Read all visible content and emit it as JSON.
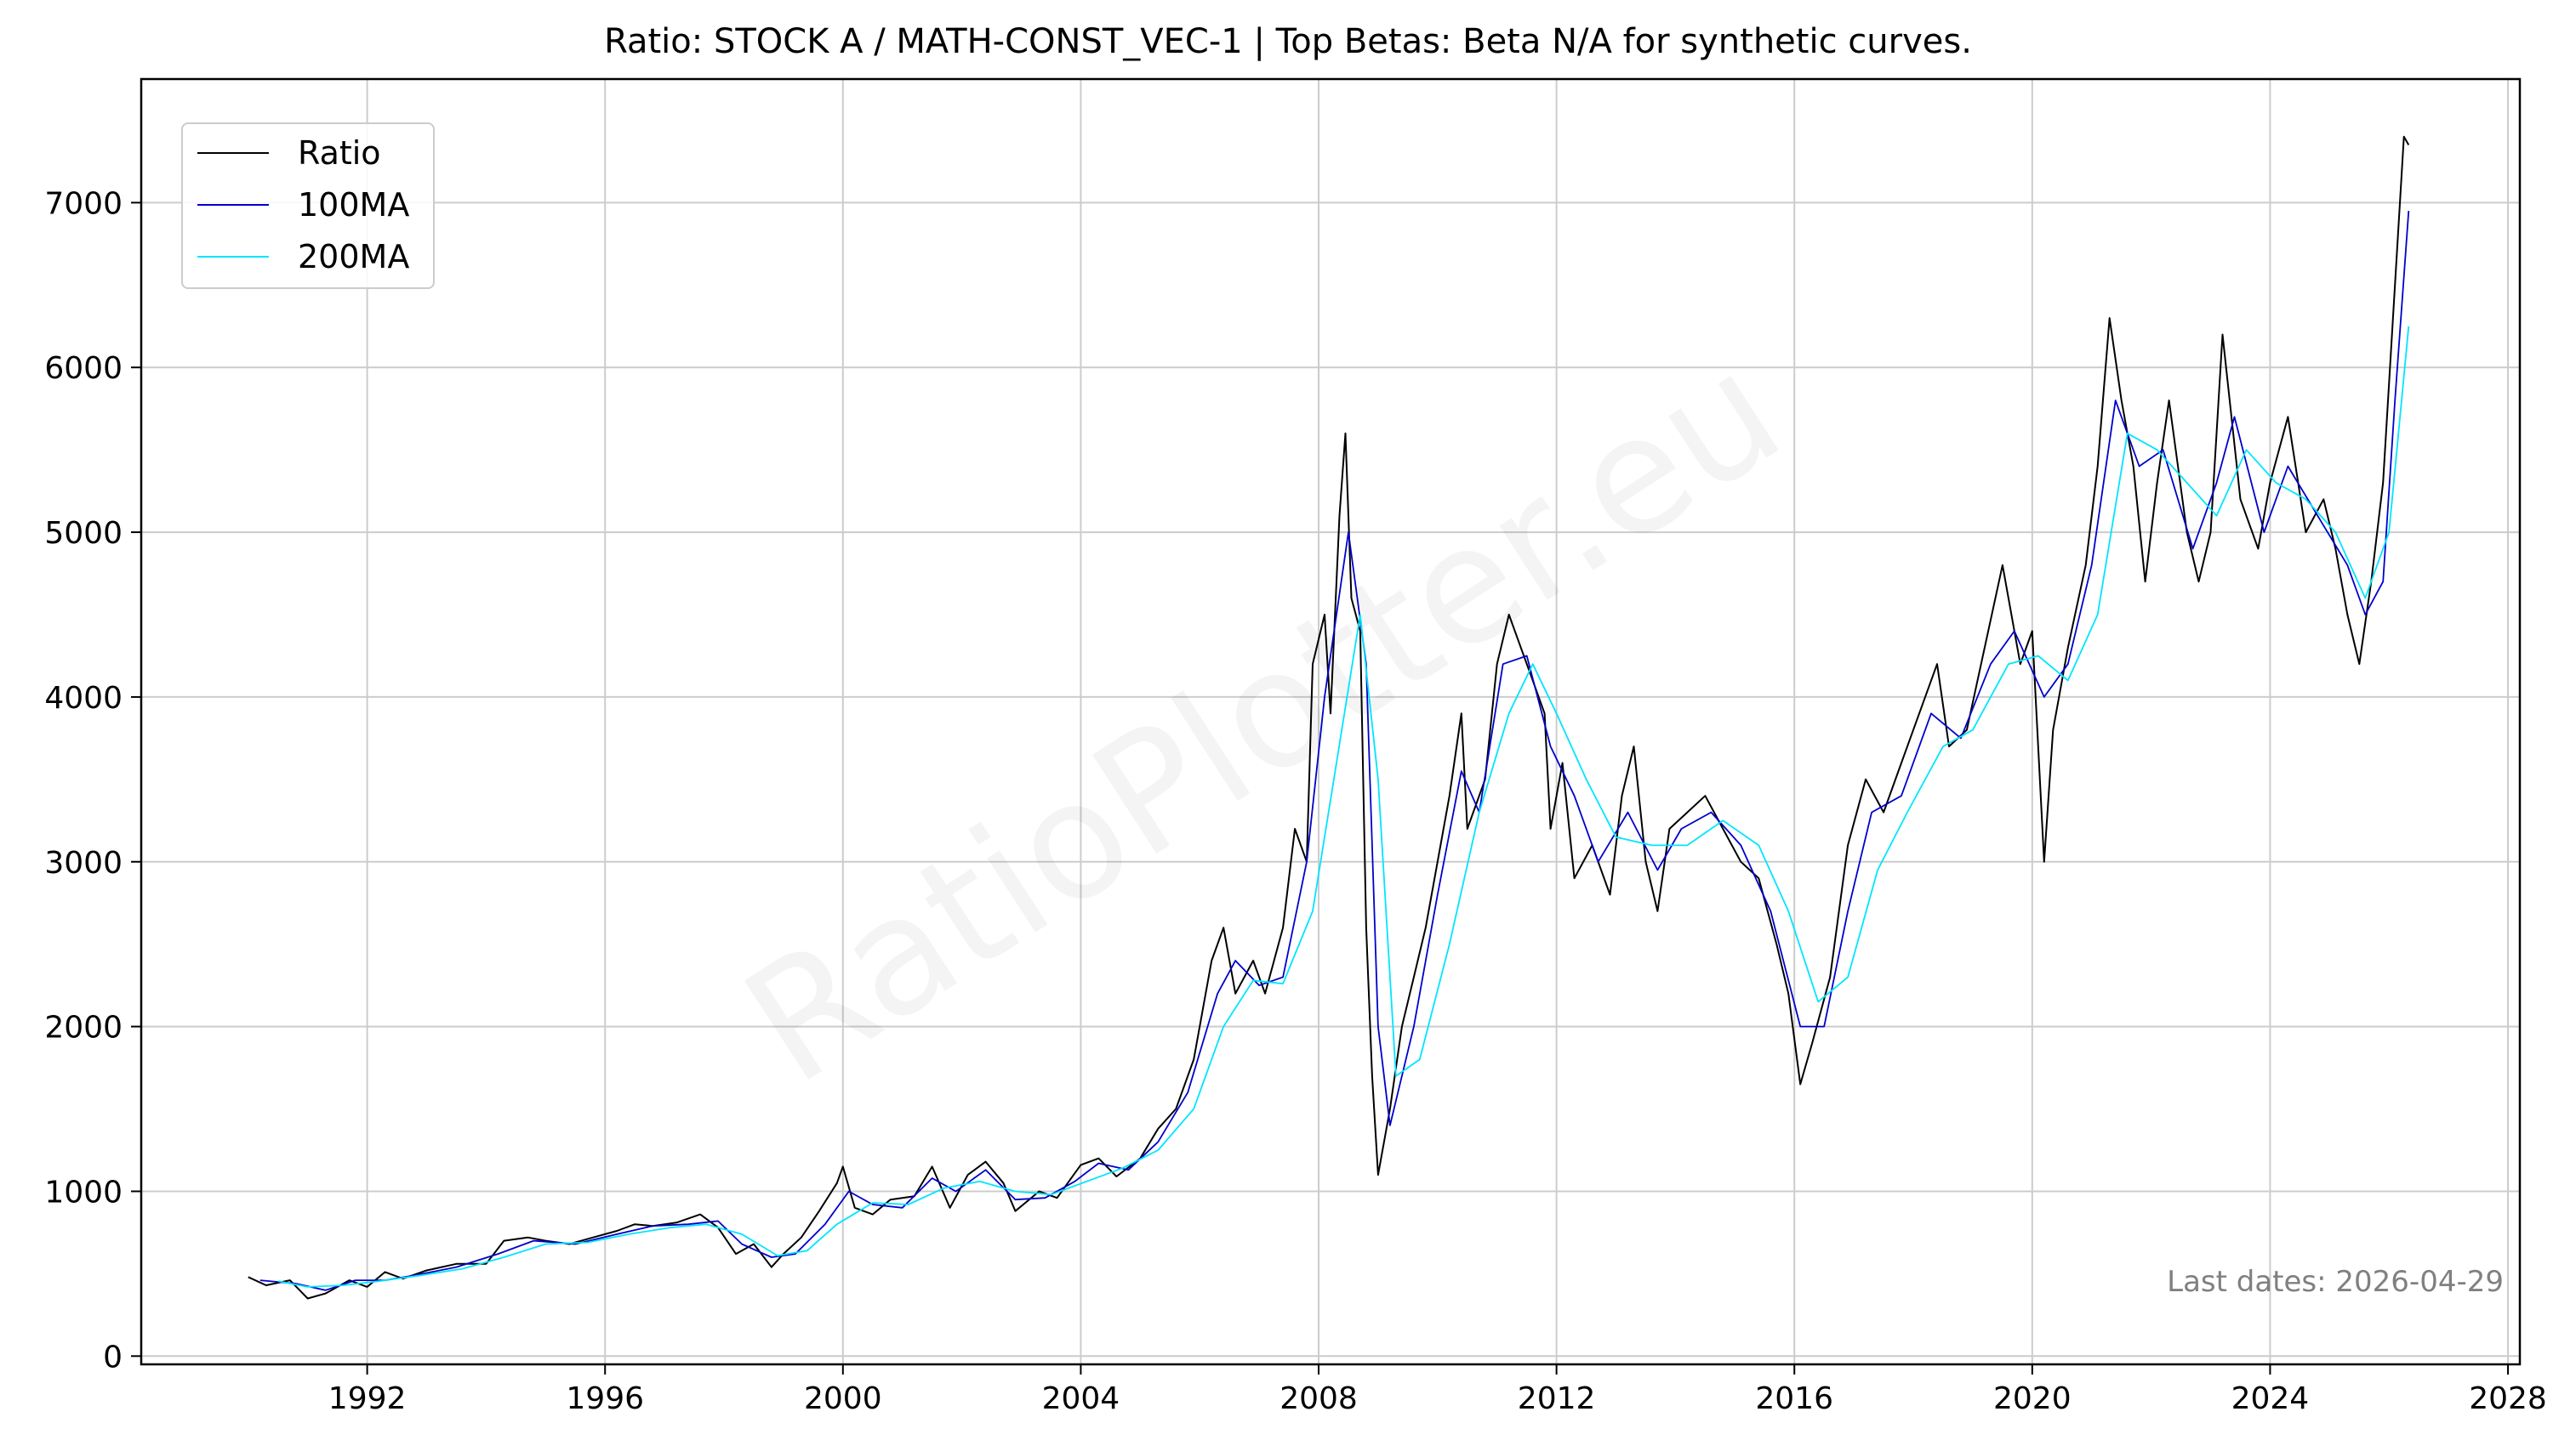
{
  "chart_data": {
    "type": "line",
    "title": "Ratio: STOCK A / MATH-CONST_VEC-1 | Top Betas: Beta N/A for synthetic curves.",
    "xlabel": "",
    "ylabel": "",
    "xlim": [
      1988.2,
      2028.2
    ],
    "ylim": [
      -50,
      7750
    ],
    "x_ticks": [
      1992,
      1996,
      2000,
      2004,
      2008,
      2012,
      2016,
      2020,
      2024,
      2028
    ],
    "y_ticks": [
      0,
      1000,
      2000,
      3000,
      4000,
      5000,
      6000,
      7000
    ],
    "grid": true,
    "legend_position": "top-left",
    "annotation": "Last dates: 2026-04-29",
    "watermark": "RatioPlotter.eu",
    "series": [
      {
        "name": "Ratio",
        "color": "#000000",
        "points": [
          [
            1990.0,
            480
          ],
          [
            1990.3,
            430
          ],
          [
            1990.7,
            460
          ],
          [
            1991.0,
            350
          ],
          [
            1991.3,
            380
          ],
          [
            1991.7,
            460
          ],
          [
            1992.0,
            420
          ],
          [
            1992.3,
            510
          ],
          [
            1992.6,
            470
          ],
          [
            1993.0,
            520
          ],
          [
            1993.5,
            560
          ],
          [
            1994.0,
            560
          ],
          [
            1994.3,
            700
          ],
          [
            1994.7,
            720
          ],
          [
            1995.0,
            700
          ],
          [
            1995.4,
            680
          ],
          [
            1995.8,
            720
          ],
          [
            1996.2,
            760
          ],
          [
            1996.5,
            800
          ],
          [
            1996.8,
            790
          ],
          [
            1997.2,
            810
          ],
          [
            1997.6,
            860
          ],
          [
            1997.9,
            780
          ],
          [
            1998.2,
            620
          ],
          [
            1998.5,
            680
          ],
          [
            1998.8,
            540
          ],
          [
            1999.0,
            620
          ],
          [
            1999.3,
            720
          ],
          [
            1999.6,
            880
          ],
          [
            1999.9,
            1050
          ],
          [
            2000.0,
            1150
          ],
          [
            2000.2,
            900
          ],
          [
            2000.5,
            860
          ],
          [
            2000.8,
            950
          ],
          [
            2001.2,
            970
          ],
          [
            2001.5,
            1150
          ],
          [
            2001.8,
            900
          ],
          [
            2002.1,
            1100
          ],
          [
            2002.4,
            1180
          ],
          [
            2002.7,
            1050
          ],
          [
            2002.9,
            880
          ],
          [
            2003.3,
            1000
          ],
          [
            2003.6,
            960
          ],
          [
            2004.0,
            1160
          ],
          [
            2004.3,
            1200
          ],
          [
            2004.6,
            1090
          ],
          [
            2005.0,
            1200
          ],
          [
            2005.3,
            1380
          ],
          [
            2005.6,
            1500
          ],
          [
            2005.9,
            1800
          ],
          [
            2006.2,
            2400
          ],
          [
            2006.4,
            2600
          ],
          [
            2006.6,
            2200
          ],
          [
            2006.9,
            2400
          ],
          [
            2007.1,
            2200
          ],
          [
            2007.4,
            2600
          ],
          [
            2007.6,
            3200
          ],
          [
            2007.8,
            3000
          ],
          [
            2007.9,
            4200
          ],
          [
            2008.1,
            4500
          ],
          [
            2008.2,
            3900
          ],
          [
            2008.35,
            5100
          ],
          [
            2008.45,
            5600
          ],
          [
            2008.55,
            4600
          ],
          [
            2008.7,
            4400
          ],
          [
            2008.8,
            2600
          ],
          [
            2008.9,
            1700
          ],
          [
            2009.0,
            1100
          ],
          [
            2009.2,
            1500
          ],
          [
            2009.4,
            2000
          ],
          [
            2009.6,
            2300
          ],
          [
            2009.8,
            2600
          ],
          [
            2010.0,
            3000
          ],
          [
            2010.2,
            3400
          ],
          [
            2010.4,
            3900
          ],
          [
            2010.5,
            3200
          ],
          [
            2010.8,
            3500
          ],
          [
            2011.0,
            4200
          ],
          [
            2011.2,
            4500
          ],
          [
            2011.4,
            4300
          ],
          [
            2011.6,
            4100
          ],
          [
            2011.8,
            3900
          ],
          [
            2011.9,
            3200
          ],
          [
            2012.1,
            3600
          ],
          [
            2012.3,
            2900
          ],
          [
            2012.6,
            3100
          ],
          [
            2012.9,
            2800
          ],
          [
            2013.1,
            3400
          ],
          [
            2013.3,
            3700
          ],
          [
            2013.5,
            3000
          ],
          [
            2013.7,
            2700
          ],
          [
            2013.9,
            3200
          ],
          [
            2014.2,
            3300
          ],
          [
            2014.5,
            3400
          ],
          [
            2014.8,
            3200
          ],
          [
            2015.1,
            3000
          ],
          [
            2015.4,
            2900
          ],
          [
            2015.7,
            2500
          ],
          [
            2015.9,
            2200
          ],
          [
            2016.1,
            1650
          ],
          [
            2016.3,
            1900
          ],
          [
            2016.6,
            2300
          ],
          [
            2016.9,
            3100
          ],
          [
            2017.2,
            3500
          ],
          [
            2017.5,
            3300
          ],
          [
            2017.8,
            3600
          ],
          [
            2018.1,
            3900
          ],
          [
            2018.4,
            4200
          ],
          [
            2018.6,
            3700
          ],
          [
            2018.9,
            3800
          ],
          [
            2019.2,
            4300
          ],
          [
            2019.5,
            4800
          ],
          [
            2019.8,
            4200
          ],
          [
            2020.0,
            4400
          ],
          [
            2020.2,
            3000
          ],
          [
            2020.35,
            3800
          ],
          [
            2020.6,
            4300
          ],
          [
            2020.9,
            4800
          ],
          [
            2021.1,
            5400
          ],
          [
            2021.3,
            6300
          ],
          [
            2021.5,
            5800
          ],
          [
            2021.7,
            5400
          ],
          [
            2021.9,
            4700
          ],
          [
            2022.1,
            5300
          ],
          [
            2022.3,
            5800
          ],
          [
            2022.6,
            5000
          ],
          [
            2022.8,
            4700
          ],
          [
            2023.0,
            5000
          ],
          [
            2023.2,
            6200
          ],
          [
            2023.5,
            5200
          ],
          [
            2023.8,
            4900
          ],
          [
            2024.0,
            5300
          ],
          [
            2024.3,
            5700
          ],
          [
            2024.6,
            5000
          ],
          [
            2024.9,
            5200
          ],
          [
            2025.1,
            4900
          ],
          [
            2025.3,
            4500
          ],
          [
            2025.5,
            4200
          ],
          [
            2025.7,
            4700
          ],
          [
            2025.9,
            5300
          ],
          [
            2026.1,
            6500
          ],
          [
            2026.25,
            7400
          ],
          [
            2026.33,
            7350
          ]
        ]
      },
      {
        "name": "100MA",
        "color": "#0000cc",
        "points": [
          [
            1990.2,
            460
          ],
          [
            1990.8,
            440
          ],
          [
            1991.3,
            400
          ],
          [
            1991.8,
            460
          ],
          [
            1992.3,
            460
          ],
          [
            1992.8,
            490
          ],
          [
            1993.5,
            540
          ],
          [
            1994.2,
            620
          ],
          [
            1994.8,
            700
          ],
          [
            1995.5,
            680
          ],
          [
            1996.2,
            740
          ],
          [
            1996.8,
            790
          ],
          [
            1997.4,
            800
          ],
          [
            1997.9,
            820
          ],
          [
            1998.3,
            680
          ],
          [
            1998.8,
            600
          ],
          [
            1999.2,
            620
          ],
          [
            1999.7,
            800
          ],
          [
            2000.1,
            1000
          ],
          [
            2000.5,
            920
          ],
          [
            2001.0,
            900
          ],
          [
            2001.5,
            1080
          ],
          [
            2001.9,
            1000
          ],
          [
            2002.4,
            1130
          ],
          [
            2002.9,
            950
          ],
          [
            2003.4,
            960
          ],
          [
            2003.9,
            1060
          ],
          [
            2004.3,
            1170
          ],
          [
            2004.8,
            1130
          ],
          [
            2005.3,
            1300
          ],
          [
            2005.8,
            1600
          ],
          [
            2006.3,
            2200
          ],
          [
            2006.6,
            2400
          ],
          [
            2007.0,
            2250
          ],
          [
            2007.4,
            2300
          ],
          [
            2007.8,
            3000
          ],
          [
            2008.1,
            4000
          ],
          [
            2008.5,
            5000
          ],
          [
            2008.8,
            4200
          ],
          [
            2009.0,
            2000
          ],
          [
            2009.2,
            1400
          ],
          [
            2009.6,
            2000
          ],
          [
            2010.0,
            2800
          ],
          [
            2010.4,
            3550
          ],
          [
            2010.7,
            3300
          ],
          [
            2011.1,
            4200
          ],
          [
            2011.5,
            4250
          ],
          [
            2011.9,
            3700
          ],
          [
            2012.3,
            3400
          ],
          [
            2012.7,
            3000
          ],
          [
            2013.2,
            3300
          ],
          [
            2013.7,
            2950
          ],
          [
            2014.1,
            3200
          ],
          [
            2014.6,
            3300
          ],
          [
            2015.1,
            3100
          ],
          [
            2015.6,
            2700
          ],
          [
            2016.1,
            2000
          ],
          [
            2016.5,
            2000
          ],
          [
            2016.9,
            2700
          ],
          [
            2017.3,
            3300
          ],
          [
            2017.8,
            3400
          ],
          [
            2018.3,
            3900
          ],
          [
            2018.8,
            3750
          ],
          [
            2019.3,
            4200
          ],
          [
            2019.7,
            4400
          ],
          [
            2020.2,
            4000
          ],
          [
            2020.6,
            4200
          ],
          [
            2021.0,
            4800
          ],
          [
            2021.4,
            5800
          ],
          [
            2021.8,
            5400
          ],
          [
            2022.2,
            5500
          ],
          [
            2022.7,
            4900
          ],
          [
            2023.1,
            5300
          ],
          [
            2023.4,
            5700
          ],
          [
            2023.9,
            5000
          ],
          [
            2024.3,
            5400
          ],
          [
            2024.8,
            5100
          ],
          [
            2025.3,
            4800
          ],
          [
            2025.6,
            4500
          ],
          [
            2025.9,
            4700
          ],
          [
            2026.1,
            5800
          ],
          [
            2026.33,
            6950
          ]
        ]
      },
      {
        "name": "200MA",
        "color": "#00e5ff",
        "points": [
          [
            1990.5,
            455
          ],
          [
            1991.0,
            420
          ],
          [
            1991.6,
            430
          ],
          [
            1992.2,
            455
          ],
          [
            1992.9,
            490
          ],
          [
            1993.6,
            530
          ],
          [
            1994.3,
            600
          ],
          [
            1995.0,
            680
          ],
          [
            1995.7,
            690
          ],
          [
            1996.4,
            740
          ],
          [
            1997.1,
            780
          ],
          [
            1997.7,
            800
          ],
          [
            1998.3,
            740
          ],
          [
            1998.9,
            610
          ],
          [
            1999.4,
            640
          ],
          [
            1999.9,
            800
          ],
          [
            2000.5,
            930
          ],
          [
            2001.1,
            920
          ],
          [
            2001.7,
            1020
          ],
          [
            2002.3,
            1060
          ],
          [
            2002.9,
            1000
          ],
          [
            2003.5,
            980
          ],
          [
            2004.1,
            1060
          ],
          [
            2004.7,
            1140
          ],
          [
            2005.3,
            1250
          ],
          [
            2005.9,
            1500
          ],
          [
            2006.4,
            2000
          ],
          [
            2006.9,
            2280
          ],
          [
            2007.4,
            2260
          ],
          [
            2007.9,
            2700
          ],
          [
            2008.3,
            3600
          ],
          [
            2008.7,
            4500
          ],
          [
            2009.0,
            3500
          ],
          [
            2009.3,
            1700
          ],
          [
            2009.7,
            1800
          ],
          [
            2010.2,
            2500
          ],
          [
            2010.7,
            3300
          ],
          [
            2011.2,
            3900
          ],
          [
            2011.6,
            4200
          ],
          [
            2012.0,
            3900
          ],
          [
            2012.5,
            3500
          ],
          [
            2013.0,
            3150
          ],
          [
            2013.6,
            3100
          ],
          [
            2014.2,
            3100
          ],
          [
            2014.8,
            3250
          ],
          [
            2015.4,
            3100
          ],
          [
            2015.9,
            2700
          ],
          [
            2016.4,
            2150
          ],
          [
            2016.9,
            2300
          ],
          [
            2017.4,
            2950
          ],
          [
            2017.9,
            3300
          ],
          [
            2018.5,
            3700
          ],
          [
            2019.0,
            3800
          ],
          [
            2019.6,
            4200
          ],
          [
            2020.1,
            4250
          ],
          [
            2020.6,
            4100
          ],
          [
            2021.1,
            4500
          ],
          [
            2021.6,
            5600
          ],
          [
            2022.1,
            5500
          ],
          [
            2022.6,
            5300
          ],
          [
            2023.1,
            5100
          ],
          [
            2023.6,
            5500
          ],
          [
            2024.1,
            5300
          ],
          [
            2024.6,
            5200
          ],
          [
            2025.1,
            5000
          ],
          [
            2025.6,
            4600
          ],
          [
            2026.0,
            5000
          ],
          [
            2026.33,
            6250
          ]
        ]
      }
    ]
  }
}
